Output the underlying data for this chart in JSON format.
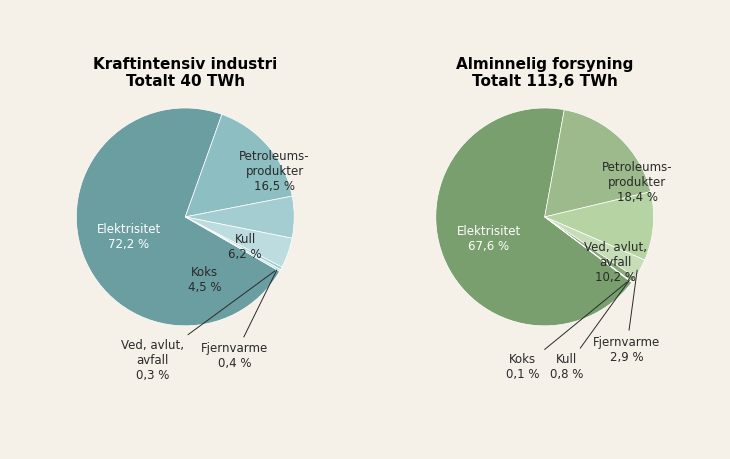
{
  "chart1_title": "Kraftintensiv industri\nTotalt 40 TWh",
  "chart2_title": "Alminnelig forsyning\nTotalt 113,6 TWh",
  "chart1_slices": [
    72.2,
    16.5,
    6.2,
    4.5,
    0.4,
    0.3
  ],
  "chart1_slice_names": [
    "Elektrisitet",
    "Petroleums-\nprodukter",
    "Kull",
    "Koks",
    "Fjernvarme",
    "Ved, avlut,\navfall"
  ],
  "chart1_colors": [
    "#6b9ea1",
    "#8dbfc2",
    "#a4cdd1",
    "#bddce0",
    "#96cbce",
    "#c5e2e5"
  ],
  "chart2_slices": [
    67.6,
    18.4,
    10.2,
    2.9,
    0.8,
    0.1
  ],
  "chart2_slice_names": [
    "Elektrisitet",
    "Petroleums-\nprodukter",
    "Ved, avlut,\navfall",
    "Fjernvarme",
    "Kull",
    "Koks"
  ],
  "chart2_colors": [
    "#7a9f6e",
    "#9cba8c",
    "#b5d3a3",
    "#c6ddb8",
    "#89a87b",
    "#7a9f6e"
  ],
  "bg_color": "#f5f0e8",
  "title_fontsize": 11,
  "label_fontsize": 8.5
}
